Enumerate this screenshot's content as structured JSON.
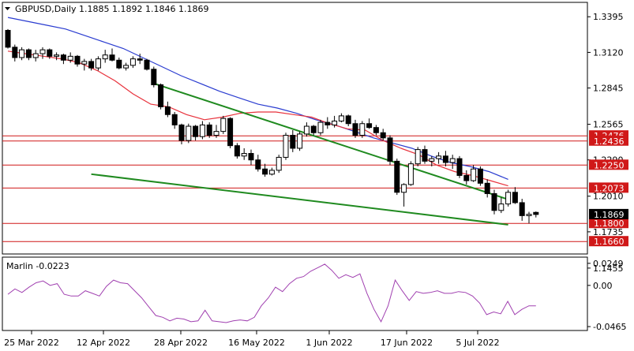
{
  "header": {
    "symbol_line": "GBPUSD,Daily  1.1885  1.1892  1.1846  1.1869"
  },
  "indicator": {
    "label": "Marlin -0.0223"
  },
  "colors": {
    "background": "#ffffff",
    "candle": "#000000",
    "ma_fast": "#e8323c",
    "ma_slow": "#2a3cd0",
    "channel": "#1f8a1f",
    "level_line": "#d01818",
    "badge": "#d01818",
    "oscillator": "#a040b0"
  },
  "chart_data": [
    {
      "type": "candlestick",
      "title": "GBPUSD,Daily",
      "ohlc_last": {
        "open": 1.1885,
        "high": 1.1892,
        "low": 1.1846,
        "close": 1.1869
      },
      "y_axis": {
        "ylim": [
          1.157,
          1.35
        ],
        "ticks": [
          "1.3395",
          "1.3120",
          "1.2845",
          "1.2565",
          "1.2290",
          "1.2010",
          "1.1735",
          "1.1455"
        ]
      },
      "x_axis": {
        "ticks": [
          "25 Mar 2022",
          "12 Apr 2022",
          "28 Apr 2022",
          "16 May 2022",
          "1 Jun 2022",
          "17 Jun 2022",
          "5 Jul 2022"
        ]
      },
      "levels": [
        {
          "label": "1.2476",
          "value": 1.2476
        },
        {
          "label": "1.2436",
          "value": 1.2436
        },
        {
          "label": "1.2250",
          "value": 1.225
        },
        {
          "label": "1.2073",
          "value": 1.2073
        },
        {
          "label": "1.1800",
          "value": 1.18
        },
        {
          "label": "1.1660",
          "value": 1.166
        }
      ],
      "current_price": {
        "label": "1.1869",
        "value": 1.1869
      },
      "candles": [
        [
          1.329,
          1.33,
          1.315,
          1.316
        ],
        [
          1.316,
          1.318,
          1.305,
          1.308
        ],
        [
          1.308,
          1.316,
          1.306,
          1.314
        ],
        [
          1.314,
          1.315,
          1.306,
          1.308
        ],
        [
          1.308,
          1.314,
          1.305,
          1.311
        ],
        [
          1.311,
          1.316,
          1.307,
          1.314
        ],
        [
          1.314,
          1.315,
          1.307,
          1.309
        ],
        [
          1.309,
          1.312,
          1.306,
          1.31
        ],
        [
          1.31,
          1.311,
          1.303,
          1.306
        ],
        [
          1.306,
          1.312,
          1.304,
          1.309
        ],
        [
          1.309,
          1.31,
          1.301,
          1.303
        ],
        [
          1.303,
          1.307,
          1.298,
          1.305
        ],
        [
          1.305,
          1.307,
          1.298,
          1.3
        ],
        [
          1.3,
          1.309,
          1.298,
          1.307
        ],
        [
          1.307,
          1.314,
          1.304,
          1.31
        ],
        [
          1.31,
          1.315,
          1.305,
          1.306
        ],
        [
          1.306,
          1.308,
          1.299,
          1.3
        ],
        [
          1.3,
          1.304,
          1.298,
          1.302
        ],
        [
          1.302,
          1.309,
          1.3,
          1.307
        ],
        [
          1.307,
          1.311,
          1.303,
          1.306
        ],
        [
          1.306,
          1.307,
          1.298,
          1.299
        ],
        [
          1.299,
          1.301,
          1.285,
          1.287
        ],
        [
          1.287,
          1.288,
          1.268,
          1.27
        ],
        [
          1.27,
          1.274,
          1.262,
          1.264
        ],
        [
          1.264,
          1.266,
          1.253,
          1.256
        ],
        [
          1.256,
          1.257,
          1.241,
          1.244
        ],
        [
          1.244,
          1.257,
          1.242,
          1.255
        ],
        [
          1.255,
          1.256,
          1.244,
          1.247
        ],
        [
          1.247,
          1.259,
          1.245,
          1.256
        ],
        [
          1.256,
          1.258,
          1.246,
          1.248
        ],
        [
          1.248,
          1.256,
          1.246,
          1.251
        ],
        [
          1.251,
          1.263,
          1.249,
          1.261
        ],
        [
          1.261,
          1.262,
          1.238,
          1.24
        ],
        [
          1.24,
          1.242,
          1.23,
          1.232
        ],
        [
          1.232,
          1.238,
          1.229,
          1.234
        ],
        [
          1.234,
          1.237,
          1.225,
          1.229
        ],
        [
          1.229,
          1.233,
          1.22,
          1.222
        ],
        [
          1.222,
          1.226,
          1.216,
          1.218
        ],
        [
          1.218,
          1.223,
          1.217,
          1.221
        ],
        [
          1.221,
          1.233,
          1.219,
          1.231
        ],
        [
          1.231,
          1.25,
          1.229,
          1.248
        ],
        [
          1.248,
          1.252,
          1.235,
          1.238
        ],
        [
          1.238,
          1.251,
          1.236,
          1.249
        ],
        [
          1.249,
          1.258,
          1.247,
          1.255
        ],
        [
          1.255,
          1.256,
          1.248,
          1.25
        ],
        [
          1.25,
          1.26,
          1.248,
          1.258
        ],
        [
          1.258,
          1.262,
          1.253,
          1.256
        ],
        [
          1.256,
          1.263,
          1.254,
          1.259
        ],
        [
          1.259,
          1.265,
          1.258,
          1.263
        ],
        [
          1.263,
          1.264,
          1.255,
          1.257
        ],
        [
          1.257,
          1.26,
          1.246,
          1.248
        ],
        [
          1.248,
          1.259,
          1.246,
          1.257
        ],
        [
          1.257,
          1.261,
          1.253,
          1.254
        ],
        [
          1.254,
          1.256,
          1.248,
          1.25
        ],
        [
          1.25,
          1.253,
          1.244,
          1.246
        ],
        [
          1.246,
          1.248,
          1.225,
          1.228
        ],
        [
          1.228,
          1.23,
          1.202,
          1.204
        ],
        [
          1.204,
          1.211,
          1.193,
          1.21
        ],
        [
          1.21,
          1.228,
          1.209,
          1.226
        ],
        [
          1.226,
          1.239,
          1.224,
          1.237
        ],
        [
          1.237,
          1.24,
          1.226,
          1.228
        ],
        [
          1.228,
          1.232,
          1.224,
          1.23
        ],
        [
          1.23,
          1.235,
          1.226,
          1.232
        ],
        [
          1.232,
          1.236,
          1.224,
          1.227
        ],
        [
          1.227,
          1.233,
          1.222,
          1.23
        ],
        [
          1.23,
          1.232,
          1.215,
          1.217
        ],
        [
          1.217,
          1.221,
          1.21,
          1.213
        ],
        [
          1.213,
          1.225,
          1.212,
          1.222
        ],
        [
          1.222,
          1.224,
          1.209,
          1.211
        ],
        [
          1.211,
          1.214,
          1.2,
          1.203
        ],
        [
          1.203,
          1.206,
          1.187,
          1.19
        ],
        [
          1.19,
          1.2,
          1.188,
          1.195
        ],
        [
          1.195,
          1.206,
          1.193,
          1.204
        ],
        [
          1.204,
          1.208,
          1.195,
          1.196
        ],
        [
          1.196,
          1.199,
          1.182,
          1.186
        ],
        [
          1.186,
          1.189,
          1.18,
          1.187
        ],
        [
          1.1885,
          1.1892,
          1.1846,
          1.1869
        ]
      ],
      "ma_fast": [
        1.313,
        1.311,
        1.309,
        1.307,
        1.304,
        1.298,
        1.29,
        1.28,
        1.272,
        1.27,
        1.264,
        1.26,
        1.262,
        1.265,
        1.266,
        1.266,
        1.264,
        1.262,
        1.257,
        1.253,
        1.252,
        1.244,
        1.238,
        1.233,
        1.225,
        1.22,
        1.217,
        1.213,
        1.209
      ],
      "ma_slow": [
        1.339,
        1.336,
        1.333,
        1.33,
        1.325,
        1.32,
        1.315,
        1.308,
        1.301,
        1.294,
        1.288,
        1.282,
        1.277,
        1.272,
        1.269,
        1.265,
        1.26,
        1.256,
        1.251,
        1.246,
        1.242,
        1.238,
        1.232,
        1.227,
        1.224,
        1.22,
        1.214
      ],
      "trend_lines": [
        {
          "name": "upper",
          "from": [
            21,
            1.288
          ],
          "to": [
            72,
            1.1985
          ]
        },
        {
          "name": "lower",
          "from": [
            12,
            1.218
          ],
          "to": [
            72,
            1.179
          ]
        }
      ]
    },
    {
      "type": "line",
      "name": "Marlin",
      "value_label": "-0.0223",
      "ylim": [
        -0.05,
        0.031
      ],
      "ticks": [
        "0.0249",
        "0.00",
        "-0.0465"
      ],
      "values": [
        -0.01,
        -0.004,
        -0.008,
        -0.002,
        0.003,
        0.005,
        0.0,
        0.002,
        -0.01,
        -0.012,
        -0.012,
        -0.006,
        -0.009,
        -0.012,
        -0.001,
        0.006,
        0.003,
        0.002,
        -0.006,
        -0.014,
        -0.024,
        -0.034,
        -0.036,
        -0.04,
        -0.037,
        -0.038,
        -0.041,
        -0.04,
        -0.028,
        -0.04,
        -0.041,
        -0.042,
        -0.04,
        -0.039,
        -0.04,
        -0.036,
        -0.023,
        -0.014,
        -0.002,
        -0.007,
        0.002,
        0.008,
        0.01,
        0.016,
        0.02,
        0.024,
        0.017,
        0.008,
        0.012,
        0.009,
        0.013,
        -0.009,
        -0.027,
        -0.041,
        -0.023,
        0.006,
        -0.006,
        -0.017,
        -0.007,
        -0.009,
        -0.008,
        -0.006,
        -0.009,
        -0.009,
        -0.007,
        -0.008,
        -0.012,
        -0.02,
        -0.033,
        -0.03,
        -0.032,
        -0.018,
        -0.033,
        -0.027,
        -0.023,
        -0.023
      ]
    }
  ]
}
